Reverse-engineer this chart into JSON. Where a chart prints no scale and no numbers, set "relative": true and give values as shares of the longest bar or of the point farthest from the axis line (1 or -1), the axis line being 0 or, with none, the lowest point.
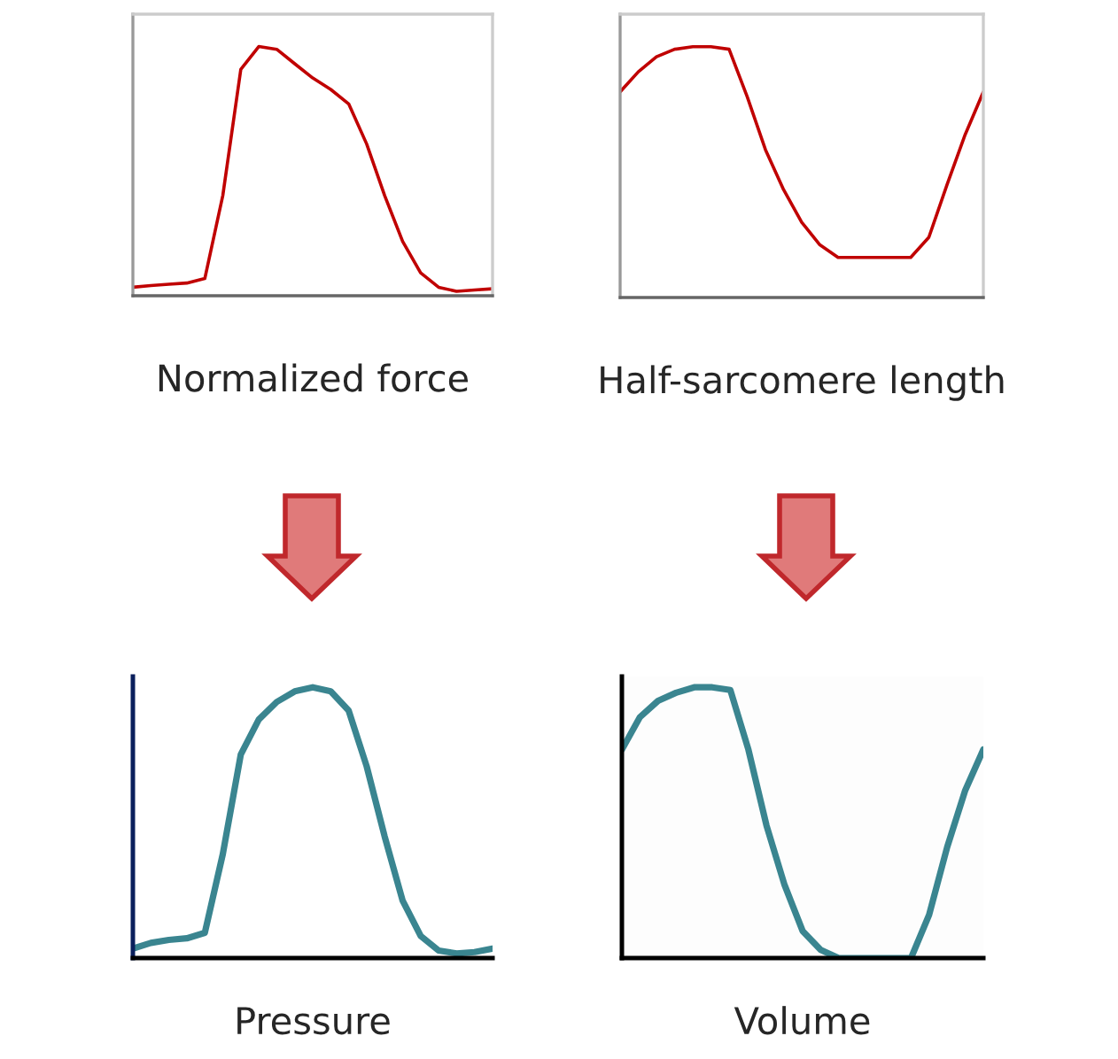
{
  "chart_data": [
    {
      "type": "line",
      "relative": true,
      "xlabel": "Normalized force",
      "categories": [
        null,
        null,
        null,
        null,
        null,
        null,
        null,
        null,
        null,
        null,
        null,
        null,
        null,
        null,
        null,
        null,
        null,
        null,
        null,
        null,
        null
      ],
      "series": [
        {
          "color": "#c00000",
          "values": [
            0.034,
            0.041,
            0.046,
            0.051,
            0.069,
            0.402,
            0.908,
            1.0,
            0.989,
            0.931,
            0.874,
            0.828,
            0.77,
            0.609,
            0.402,
            0.218,
            0.092,
            0.034,
            0.018,
            0.023,
            0.028
          ]
        }
      ]
    },
    {
      "type": "line",
      "relative": true,
      "xlabel": "Half-sarcomere length",
      "categories": [
        null,
        null,
        null,
        null,
        null,
        null,
        null,
        null,
        null,
        null,
        null,
        null,
        null,
        null,
        null,
        null,
        null,
        null,
        null,
        null,
        null
      ],
      "series": [
        {
          "color": "#c00000",
          "values": [
            0.82,
            0.9,
            0.96,
            0.99,
            1.0,
            1.0,
            0.99,
            0.8,
            0.59,
            0.43,
            0.3,
            0.21,
            0.16,
            0.16,
            0.16,
            0.16,
            0.16,
            0.24,
            0.45,
            0.65,
            0.82
          ]
        }
      ]
    },
    {
      "type": "line",
      "relative": true,
      "xlabel": "Pressure",
      "categories": [
        null,
        null,
        null,
        null,
        null,
        null,
        null,
        null,
        null,
        null,
        null,
        null,
        null,
        null,
        null,
        null,
        null,
        null,
        null,
        null,
        null
      ],
      "series": [
        {
          "color": "#3a8590",
          "values": [
            0.035,
            0.056,
            0.067,
            0.073,
            0.093,
            0.384,
            0.752,
            0.881,
            0.946,
            0.985,
            1.0,
            0.985,
            0.914,
            0.708,
            0.449,
            0.212,
            0.082,
            0.028,
            0.017,
            0.022,
            0.035
          ]
        }
      ]
    },
    {
      "type": "line",
      "relative": true,
      "xlabel": "Volume",
      "categories": [
        null,
        null,
        null,
        null,
        null,
        null,
        null,
        null,
        null,
        null,
        null,
        null,
        null,
        null,
        null,
        null,
        null,
        null,
        null,
        null,
        null
      ],
      "series": [
        {
          "color": "#3a8590",
          "values": [
            0.77,
            0.89,
            0.95,
            0.98,
            1.0,
            1.0,
            0.99,
            0.77,
            0.49,
            0.27,
            0.1,
            0.03,
            0,
            0,
            0,
            0,
            0,
            0.16,
            0.41,
            0.62,
            0.77
          ]
        }
      ]
    }
  ]
}
